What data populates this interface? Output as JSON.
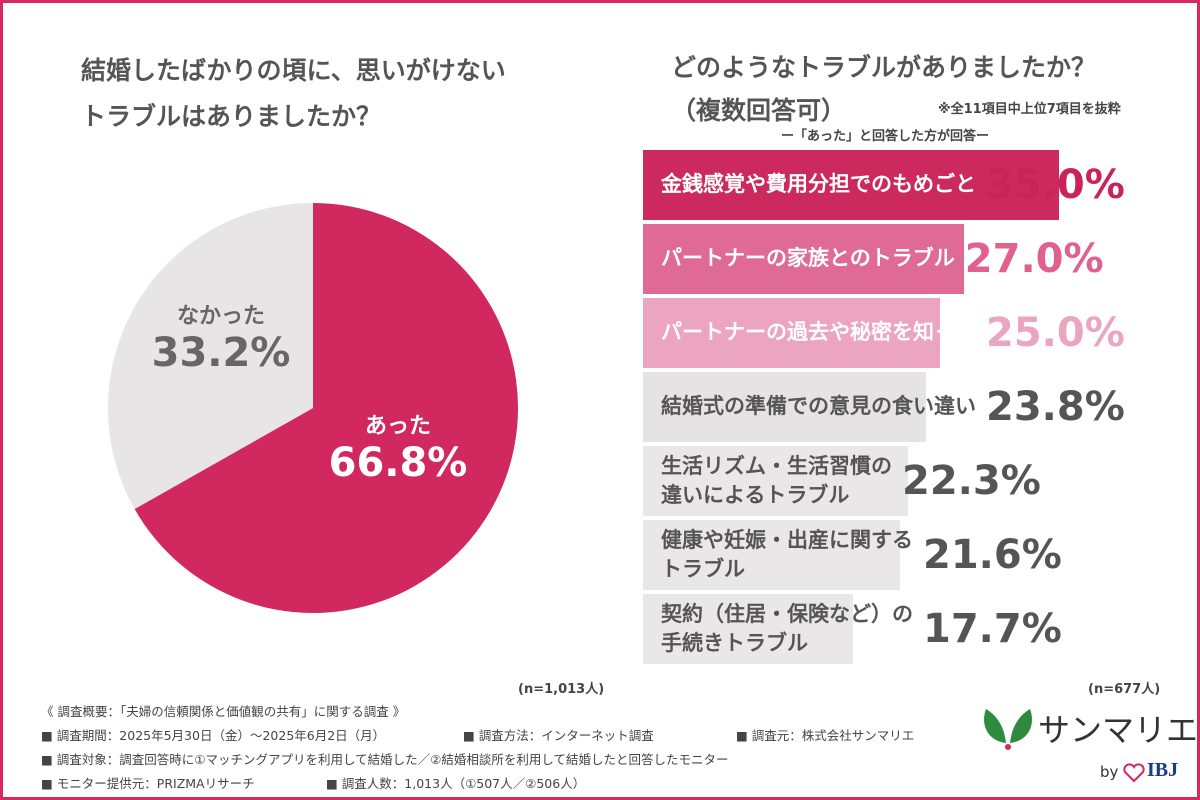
{
  "chart_data": [
    {
      "type": "pie",
      "title": [
        "結婚したばかりの頃に、思いがけない",
        "トラブルはありましたか？"
      ],
      "categories": [
        "あった",
        "なかった"
      ],
      "values": [
        66.8,
        33.2
      ],
      "value_labels": [
        "66.8%",
        "33.2%"
      ],
      "colors": [
        "#d0285f",
        "#e8e5e6"
      ],
      "label_colors": [
        "#ffffff",
        "#666666"
      ],
      "note": "(n=1,013人)"
    },
    {
      "type": "hbar",
      "title": [
        "どのようなトラブルがありましたか？",
        "（複数回答可）"
      ],
      "subtitle": "ー「あった」と回答した方が回答ー",
      "remark": "※全11項目中上位7項目を抜粋",
      "categories": [
        "金銭感覚や費用分担でのもめごと",
        "パートナーの家族とのトラブル",
        "パートナーの過去や秘密を知った",
        "結婚式の準備での意見の食い違い",
        "生活リズム・生活習慣の\n違いによるトラブル",
        "健康や妊娠・出産に関する\nトラブル",
        "契約（住居・保険など）の\n手続きトラブル"
      ],
      "values": [
        35.0,
        27.0,
        25.0,
        23.8,
        22.3,
        21.6,
        17.7
      ],
      "value_labels": [
        "35.0%",
        "27.0%",
        "25.0%",
        "23.8%",
        "22.3%",
        "21.6%",
        "17.7%"
      ],
      "colors": [
        "#cc2a5e",
        "#df6a93",
        "#eba5c0",
        "#e6e3e5",
        "#e9e7e8",
        "#e9e7e8",
        "#e9e7e8"
      ],
      "text_colors": [
        "#ffffff",
        "#ffffff",
        "#ffffff",
        "#555555",
        "#555555",
        "#555555",
        "#555555"
      ],
      "value_colors": [
        "#c9245a",
        "#e0608e",
        "#eaa6c1",
        "#555555",
        "#555555",
        "#555555",
        "#555555"
      ],
      "note": "(n=677人)"
    }
  ],
  "footer": {
    "title": "《 調査概要：「夫婦の信頼関係と価値観の共有」に関する調査 》",
    "rows": [
      [
        "■ 調査期間：2025年5月30日（金）〜2025年6月2日（月）",
        "■ 調査方法：インターネット調査",
        "■ 調査元：株式会社サンマリエ"
      ],
      [
        "■ 調査対象：調査回答時に①マッチングアプリを利用して結婚した／②結婚相談所を利用して結婚したと回答したモニター"
      ],
      [
        "■ モニター提供元：PRIZMAリサーチ",
        "■ 調査人数：1,013人（①507人／②506人）"
      ]
    ]
  },
  "logo": {
    "name": "サンマリエ",
    "by": "by",
    "brand": "IBJ"
  }
}
